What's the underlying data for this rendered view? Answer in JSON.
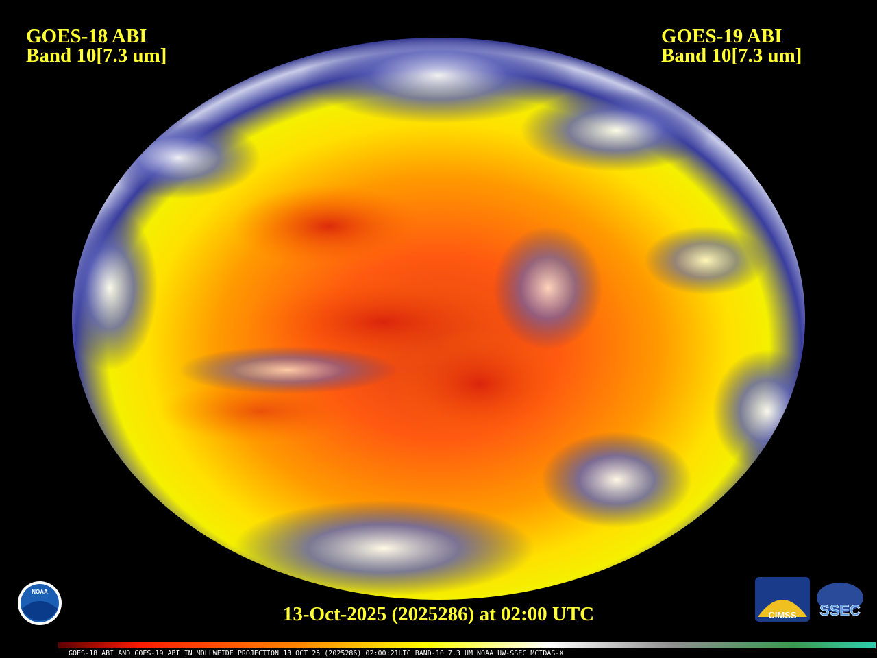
{
  "left_label": {
    "line1": "GOES-18 ABI",
    "line2": "Band 10[7.3 um]"
  },
  "right_label": {
    "line1": "GOES-19 ABI",
    "line2": "Band 10[7.3 um]"
  },
  "timestamp": "13-Oct-2025 (2025286) at 02:00 UTC",
  "colorbar_caption": "GOES-18 ABI AND GOES-19 ABI IN MOLLWEIDE PROJECTION 13 OCT 25 (2025286) 02:00:21UTC BAND-10 7.3 UM NOAA UW-SSEC MCIDAS-X",
  "logos": {
    "noaa": "NOAA",
    "cimss": "CIMSS",
    "ssec": "SSEC"
  }
}
